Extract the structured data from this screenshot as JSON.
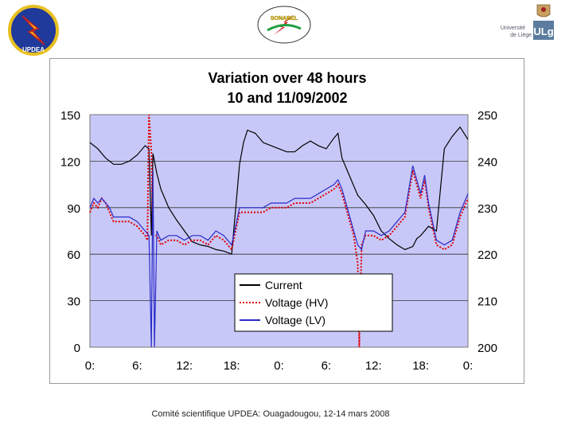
{
  "header": {
    "logo_left_text": "UPDEA",
    "logo_center_text": "SONABEL",
    "logo_right_text_1": "Université",
    "logo_right_text_2": "de Liège",
    "logo_right_mark": "ULg"
  },
  "chart_data": {
    "type": "line",
    "title": "Variation over 48 hours",
    "subtitle": "10 and 11/09/2002",
    "plot_background": "#c8c8f8",
    "grid": true,
    "x_ticks": [
      "0:",
      "6:",
      "12:",
      "18:",
      "0:",
      "6:",
      "12:",
      "18:",
      "0:"
    ],
    "x_range_hours": [
      0,
      48
    ],
    "y_left": {
      "ticks": [
        "150",
        "120",
        "90",
        "60",
        "30",
        "0"
      ],
      "range": [
        0,
        150
      ]
    },
    "y_right": {
      "ticks": [
        "250",
        "240",
        "230",
        "220",
        "210",
        "200"
      ],
      "range": [
        200,
        250
      ]
    },
    "legend": {
      "position": "bottom-center"
    },
    "series": [
      {
        "name": "Current",
        "axis": "left",
        "color": "#000000",
        "dash": "solid",
        "x": [
          0,
          1,
          2,
          3,
          4,
          5,
          6,
          7,
          7.5,
          7.8,
          8,
          8.5,
          9,
          10,
          11,
          12,
          13,
          14,
          15,
          16,
          17,
          18,
          19,
          19.5,
          20,
          21,
          22,
          23,
          24,
          25,
          26,
          27,
          28,
          29,
          30,
          31,
          31.5,
          32,
          33,
          34,
          35,
          36,
          37,
          38,
          39,
          40,
          41,
          41.5,
          42,
          43,
          44,
          45,
          46,
          47,
          48
        ],
        "values": [
          132,
          128,
          122,
          118,
          118,
          120,
          124,
          130,
          128,
          72,
          125,
          112,
          102,
          90,
          82,
          75,
          68,
          66,
          65,
          63,
          62,
          60,
          118,
          132,
          140,
          138,
          132,
          130,
          128,
          126,
          126,
          130,
          133,
          130,
          128,
          135,
          138,
          122,
          110,
          98,
          92,
          85,
          75,
          70,
          66,
          63,
          65,
          70,
          72,
          78,
          75,
          128,
          136,
          142,
          134
        ]
      },
      {
        "name": "Voltage (HV)",
        "axis": "right",
        "color": "#e00000",
        "dash": "dotted",
        "x": [
          0,
          0.5,
          1,
          1.5,
          2,
          2.5,
          3,
          4,
          5,
          6,
          7,
          7.3,
          7.5,
          7.8,
          8,
          8.5,
          9,
          10,
          11,
          12,
          13,
          14,
          15,
          16,
          17,
          18,
          19,
          20,
          21,
          22,
          23,
          24,
          25,
          26,
          27,
          28,
          29,
          30,
          31,
          31.5,
          32,
          33,
          33.5,
          34,
          34.2,
          34.5,
          35,
          36,
          37,
          38,
          39,
          40,
          41,
          42,
          42.5,
          43,
          44,
          45,
          46,
          47,
          48
        ],
        "values": [
          229,
          231,
          230,
          232,
          231,
          229,
          227,
          227,
          227,
          226,
          224,
          223,
          250,
          242,
          224,
          224,
          222,
          223,
          223,
          222,
          223,
          223,
          222,
          224,
          223,
          221,
          229,
          229,
          229,
          229,
          230,
          230,
          230,
          231,
          231,
          231,
          232,
          233,
          234,
          235,
          233,
          227,
          224,
          218,
          200,
          222,
          224,
          224,
          223,
          224,
          226,
          228,
          238,
          232,
          236,
          230,
          222,
          221,
          222,
          228,
          232
        ]
      },
      {
        "name": "Voltage (LV)",
        "axis": "right",
        "color": "#2a2ac8",
        "dash": "solid",
        "x": [
          0,
          0.5,
          1,
          1.5,
          2,
          2.5,
          3,
          4,
          5,
          6,
          7,
          7.5,
          7.8,
          8,
          8.2,
          8.5,
          9,
          10,
          11,
          12,
          13,
          14,
          15,
          16,
          17,
          18,
          19,
          20,
          21,
          22,
          23,
          24,
          25,
          26,
          27,
          28,
          29,
          30,
          31,
          31.5,
          32,
          33,
          33.5,
          34,
          34.5,
          35,
          36,
          37,
          38,
          39,
          40,
          41,
          42,
          42.5,
          43,
          44,
          45,
          46,
          47,
          48
        ],
        "values": [
          230,
          232,
          231,
          232,
          231,
          230,
          228,
          228,
          228,
          227,
          225,
          224,
          200,
          238,
          200,
          225,
          223,
          224,
          224,
          223,
          224,
          224,
          223,
          225,
          224,
          222,
          230,
          230,
          230,
          230,
          231,
          231,
          231,
          232,
          232,
          232,
          233,
          234,
          235,
          236,
          234,
          228,
          225,
          222,
          221,
          225,
          225,
          224,
          225,
          227,
          229,
          239,
          233,
          237,
          231,
          223,
          222,
          223,
          229,
          233
        ]
      }
    ]
  },
  "footer": {
    "text": "Comité scientifique UPDEA: Ouagadougou, 12-14 mars 2008"
  }
}
